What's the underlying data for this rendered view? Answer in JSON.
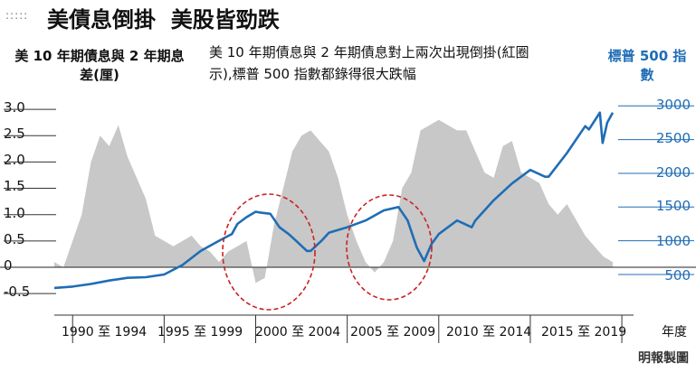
{
  "header": {
    "dots": ":::::",
    "title": "美債息倒掛  美股皆勁跌"
  },
  "chart_data": {
    "type": "area",
    "title": "美債息倒掛  美股皆勁跌",
    "y_left_label": "美 10 年期債息與 2 年期息差(厘)",
    "y_right_label": "標普 500 指數",
    "annotation": "美 10 年期債息與 2 年期債息對上兩次出現倒掛(紅圈示),標普 500 指數都錄得很大跌幅",
    "x_axis_title": "年度",
    "y_left_ticks": [
      "3.0",
      "2.5",
      "2.0",
      "1.5",
      "1.0",
      "0.5",
      "0",
      "-0.5"
    ],
    "y_right_ticks": [
      "3000",
      "2500",
      "2000",
      "1500",
      "1000",
      "500"
    ],
    "x_tick_labels": [
      "1990 至 1994",
      "1995 至 1999",
      "2000 至 2004",
      "2005 至 2009",
      "2010 至 2014",
      "2015 至 2019"
    ],
    "y_left_range": [
      -0.5,
      3.0
    ],
    "y_right_range": [
      500,
      3000
    ],
    "x_range": [
      1989.0,
      2019.7
    ],
    "series": [
      {
        "name": "10Y-2Y spread",
        "axis": "left",
        "color": "#c8c8c8",
        "x": [
          1989.0,
          1989.5,
          1990.0,
          1990.5,
          1991.0,
          1991.5,
          1992.0,
          1992.5,
          1993.0,
          1993.5,
          1994.0,
          1994.5,
          1995.0,
          1995.5,
          1996.0,
          1996.5,
          1997.0,
          1997.5,
          1998.0,
          1998.5,
          1999.0,
          1999.5,
          2000.0,
          2000.5,
          2001.0,
          2001.5,
          2002.0,
          2002.5,
          2003.0,
          2003.5,
          2004.0,
          2004.5,
          2005.0,
          2005.5,
          2006.0,
          2006.5,
          2007.0,
          2007.5,
          2008.0,
          2008.5,
          2009.0,
          2009.5,
          2010.0,
          2010.5,
          2011.0,
          2011.5,
          2012.0,
          2012.5,
          2013.0,
          2013.5,
          2014.0,
          2014.5,
          2015.0,
          2015.5,
          2016.0,
          2016.5,
          2017.0,
          2017.5,
          2018.0,
          2018.5,
          2019.0,
          2019.5
        ],
        "values": [
          0.1,
          0.0,
          0.5,
          1.0,
          2.0,
          2.5,
          2.3,
          2.7,
          2.1,
          1.7,
          1.3,
          0.6,
          0.5,
          0.4,
          0.5,
          0.6,
          0.4,
          0.3,
          0.1,
          0.3,
          0.4,
          0.5,
          -0.3,
          -0.2,
          0.8,
          1.5,
          2.2,
          2.5,
          2.6,
          2.4,
          2.2,
          1.7,
          1.0,
          0.5,
          0.1,
          -0.1,
          0.1,
          0.5,
          1.5,
          1.8,
          2.6,
          2.7,
          2.8,
          2.7,
          2.6,
          2.6,
          2.2,
          1.8,
          1.7,
          2.3,
          2.4,
          1.8,
          1.7,
          1.6,
          1.2,
          1.0,
          1.2,
          0.9,
          0.6,
          0.4,
          0.2,
          0.1
        ]
      },
      {
        "name": "S&P 500",
        "axis": "right",
        "color": "#1f6db5",
        "x": [
          1989.0,
          1990.0,
          1991.0,
          1992.0,
          1993.0,
          1994.0,
          1995.0,
          1996.0,
          1997.0,
          1998.0,
          1998.7,
          1999.0,
          1999.5,
          2000.0,
          2000.2,
          2000.8,
          2001.3,
          2001.8,
          2002.2,
          2002.8,
          2003.0,
          2003.6,
          2004.0,
          2005.0,
          2006.0,
          2007.0,
          2007.8,
          2008.3,
          2008.8,
          2009.2,
          2009.6,
          2010.0,
          2011.0,
          2011.8,
          2012.0,
          2013.0,
          2014.0,
          2015.0,
          2015.8,
          2016.0,
          2017.0,
          2018.0,
          2018.2,
          2018.8,
          2018.95,
          2019.2,
          2019.5
        ],
        "values": [
          300,
          320,
          360,
          410,
          450,
          460,
          500,
          640,
          850,
          1000,
          1100,
          1250,
          1350,
          1430,
          1420,
          1400,
          1200,
          1100,
          1000,
          850,
          850,
          1000,
          1120,
          1200,
          1300,
          1450,
          1500,
          1300,
          900,
          700,
          950,
          1100,
          1300,
          1200,
          1300,
          1600,
          1850,
          2050,
          1950,
          1950,
          2300,
          2700,
          2650,
          2900,
          2450,
          2750,
          2900
        ]
      }
    ],
    "highlights": [
      {
        "label": "2000",
        "color": "#cc2222"
      },
      {
        "label": "2007",
        "color": "#cc2222"
      }
    ]
  },
  "footer": {
    "credit": "明報製圖"
  }
}
